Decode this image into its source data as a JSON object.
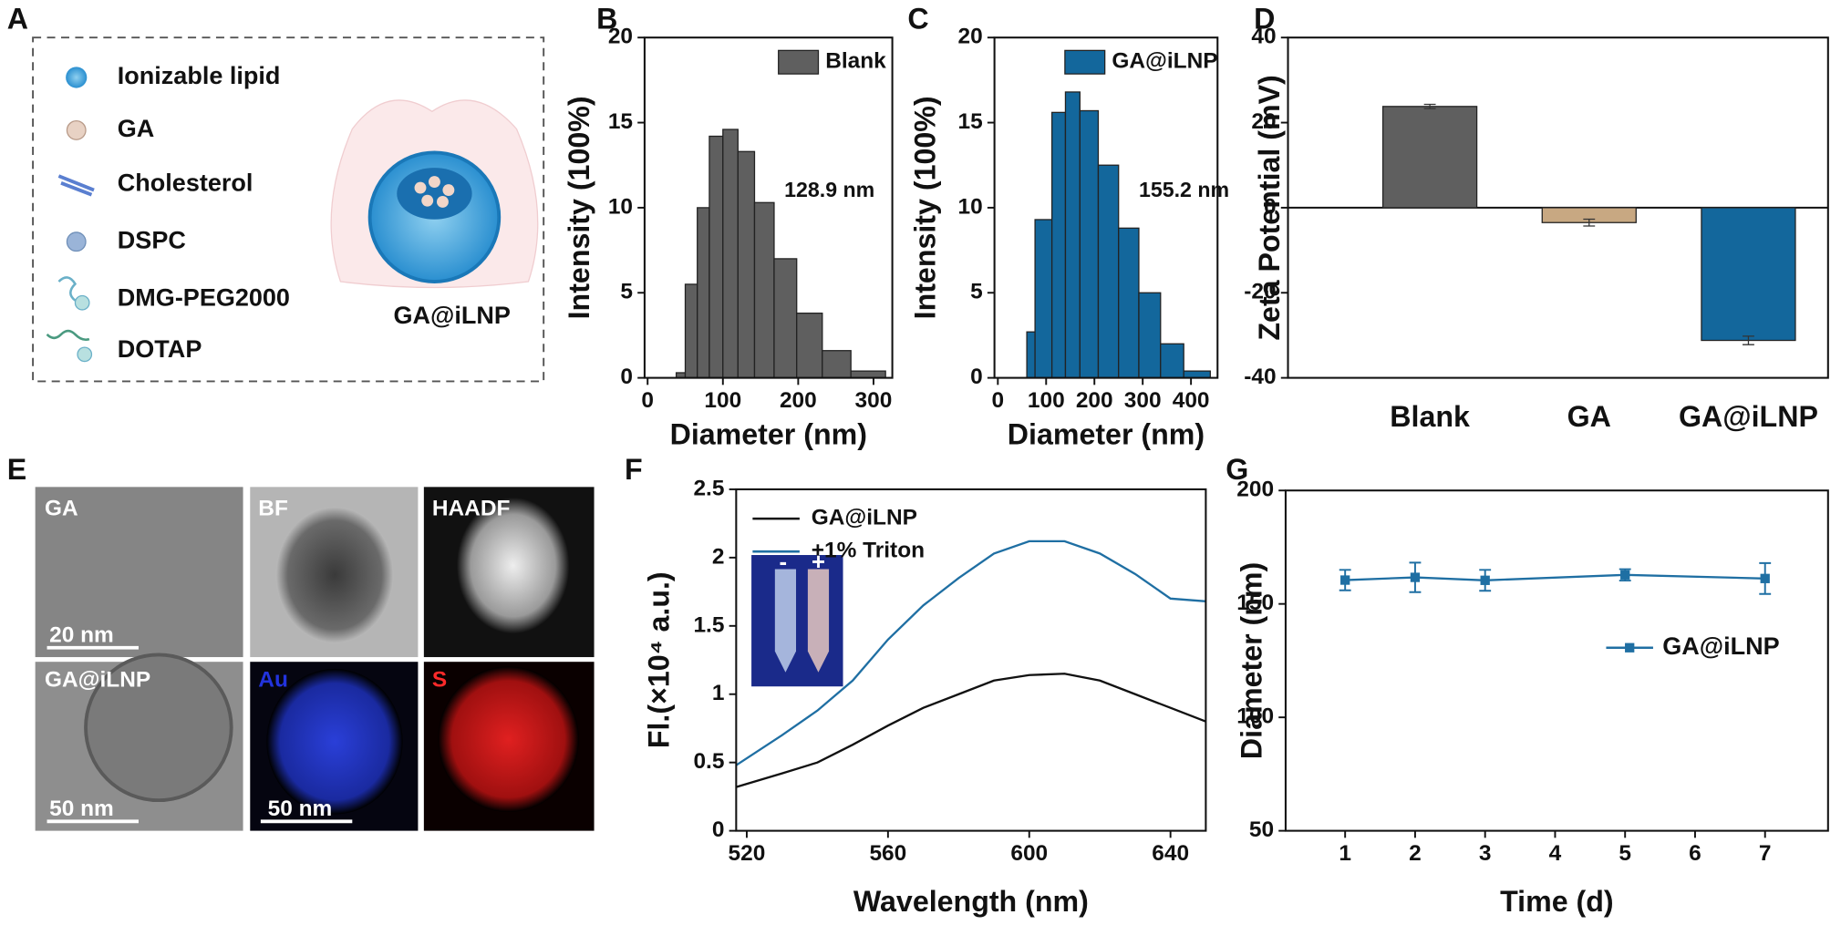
{
  "chart_data": [
    {
      "type": "histogram",
      "panel": "B",
      "name": "Blank",
      "color": "#5f5f5f",
      "bins": [
        38,
        50,
        66,
        82,
        100,
        120,
        142,
        168,
        198,
        232,
        270,
        316
      ],
      "values": [
        0.3,
        5.5,
        10,
        14.2,
        14.6,
        13.3,
        10.3,
        7,
        3.8,
        1.6,
        0.4
      ],
      "annotation": "128.9 nm",
      "xlabel": "Diameter (nm)",
      "ylabel": "Intensity (100%)",
      "xlim": [
        -4,
        325
      ],
      "xticks": [
        0,
        100,
        200,
        300
      ],
      "ylim": [
        0,
        20
      ],
      "yticks": [
        0,
        5,
        10,
        15,
        20
      ]
    },
    {
      "type": "histogram",
      "panel": "C",
      "name": "GA@iLNP",
      "color": "#13679c",
      "bins": [
        60,
        77,
        112,
        140,
        170,
        208,
        250,
        292,
        337,
        385,
        440
      ],
      "values": [
        2.7,
        9.3,
        15.6,
        16.8,
        15.7,
        12.5,
        8.8,
        5.0,
        2.0,
        0.4
      ],
      "annotation": "155.2 nm",
      "xlabel": "Diameter (nm)",
      "ylabel": "Intensity (100%)",
      "xlim": [
        -7,
        455
      ],
      "xticks": [
        0,
        100,
        200,
        300,
        400
      ],
      "ylim": [
        0,
        20
      ],
      "yticks": [
        0,
        5,
        10,
        15,
        20
      ]
    },
    {
      "type": "bar",
      "panel": "D",
      "categories": [
        "Blank",
        "GA",
        "GA@iLNP"
      ],
      "values": [
        23.8,
        -3.5,
        -31.2
      ],
      "errors": [
        0.5,
        0.8,
        1.0
      ],
      "colors": [
        "#5f5f5f",
        "#c8a882",
        "#13679c"
      ],
      "ylabel": "Zeta Potential (mV)",
      "ylim": [
        -40,
        40
      ],
      "yticks": [
        -40,
        -20,
        0,
        20,
        40
      ]
    },
    {
      "type": "line",
      "panel": "F",
      "x": [
        517,
        530,
        540,
        550,
        560,
        570,
        580,
        590,
        600,
        610,
        620,
        630,
        640,
        650
      ],
      "series": [
        {
          "name": "GA@iLNP",
          "color": "#111111",
          "values": [
            0.32,
            0.42,
            0.5,
            0.63,
            0.77,
            0.9,
            1.0,
            1.1,
            1.14,
            1.15,
            1.1,
            1.0,
            0.9,
            0.8
          ]
        },
        {
          "name": "+1% Triton",
          "color": "#1f6fa3",
          "values": [
            0.48,
            0.7,
            0.88,
            1.1,
            1.4,
            1.65,
            1.85,
            2.03,
            2.12,
            2.12,
            2.03,
            1.88,
            1.7,
            1.68
          ]
        }
      ],
      "inset_labels": [
        "-",
        "+"
      ],
      "xlabel": "Wavelength (nm)",
      "ylabel": "Fl.(×10⁴ a.u.)",
      "xlim": [
        517,
        650
      ],
      "xticks": [
        520,
        560,
        600,
        640
      ],
      "ylim": [
        0,
        2.5
      ],
      "yticks": [
        0,
        0.5,
        1,
        1.5,
        2,
        2.5
      ]
    },
    {
      "type": "errline",
      "panel": "G",
      "x": [
        1,
        2,
        3,
        5,
        7
      ],
      "series": [
        {
          "name": "GA@iLNP",
          "color": "#1f6fa3",
          "values": [
            160.5,
            161.7,
            160.4,
            162.8,
            161.2
          ],
          "errors": [
            4.5,
            6.5,
            4.6,
            2.5,
            6.8
          ]
        }
      ],
      "xlabel": "Time (d)",
      "ylabel": "Diameter (nm)",
      "xlim": [
        0.15,
        7.9
      ],
      "xticks": [
        1,
        2,
        3,
        4,
        5,
        6,
        7
      ],
      "ylim": [
        50,
        200
      ],
      "yticks": [
        50,
        100,
        150,
        200
      ]
    }
  ],
  "panel_a": {
    "letter": "A",
    "items": [
      "Ionizable lipid",
      "GA",
      "Cholesterol",
      "DSPC",
      "DMG-PEG2000",
      "DOTAP"
    ],
    "label": "GA@iLNP"
  },
  "panel_e": {
    "letter": "E",
    "images": [
      {
        "label": "GA",
        "scale": "20 nm"
      },
      {
        "label": "BF"
      },
      {
        "label": "HAADF"
      },
      {
        "label": "GA@iLNP",
        "scale": "50 nm"
      },
      {
        "label": "Au",
        "scale": "50 nm"
      },
      {
        "label": "S"
      }
    ]
  }
}
